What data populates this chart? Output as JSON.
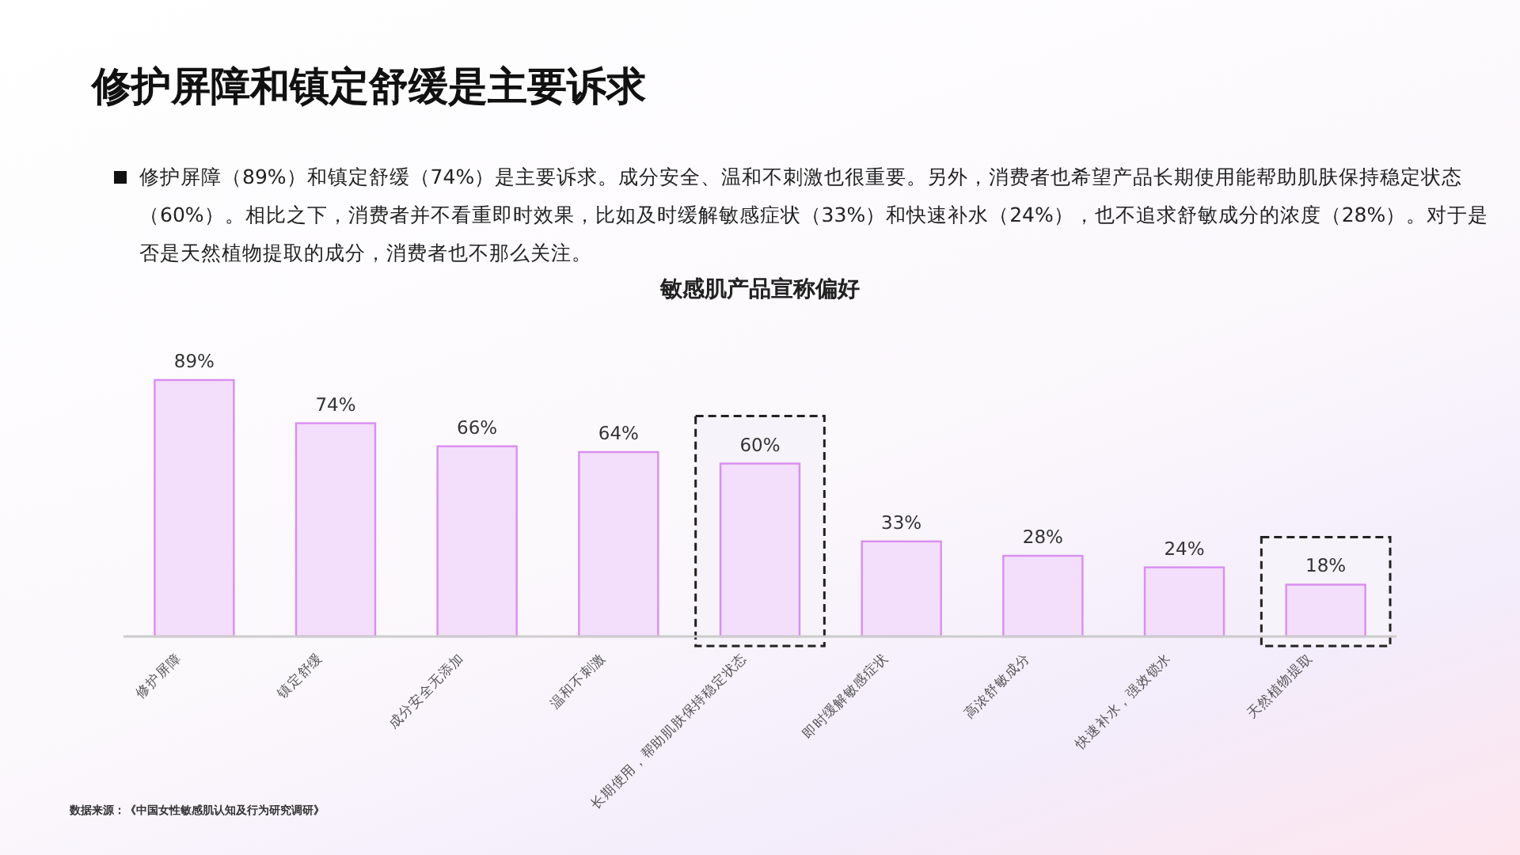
{
  "chart_data": {
    "type": "bar",
    "title": "修护屏障和镇定舒缓是主要诉求",
    "subtitle": "敏感肌产品宣称偏好",
    "categories": [
      "修护屏障",
      "镇定舒缓",
      "成分安全无添加",
      "温和不刺激",
      "长期使用，帮助肌肤保持稳定状态",
      "即时缓解敏感症状",
      "高浓舒敏成分",
      "快速补水，强效锁水",
      "天然植物提取"
    ],
    "values": [
      89,
      74,
      66,
      64,
      60,
      33,
      28,
      24,
      18
    ],
    "value_labels": [
      "89%",
      "74%",
      "66%",
      "64%",
      "60%",
      "33%",
      "28%",
      "24%",
      "18%"
    ],
    "color": "#f3defb",
    "bands": [
      {
        "axis": "x",
        "from": "长期使用，帮助肌肤保持稳定状态",
        "to": "长期使用，帮助肌肤保持稳定状态",
        "color": "#f7f3fa"
      },
      {
        "axis": "x",
        "from": "天然植物提取",
        "to": "天然植物提取",
        "color": "#f7f3fa"
      }
    ],
    "annotations": [
      "修护屏障（89%）和镇定舒缓（74%）是主要诉求。成分安全、温和不刺激也很重要。另外，消费者也希望产品长期使用能帮助肌肤保持稳定状态（60%）。相比之下，消费者并不看重即时效果，比如及时缓解敏感症状（33%）和快速补水（24%），也不追求舒敏成分的浓度（28%）。对于是否是天然植物提取的成分，消费者也不那么关注。",
      "数据来源：《中国女性敏感肌认知及行为研究调研》"
    ]
  }
}
